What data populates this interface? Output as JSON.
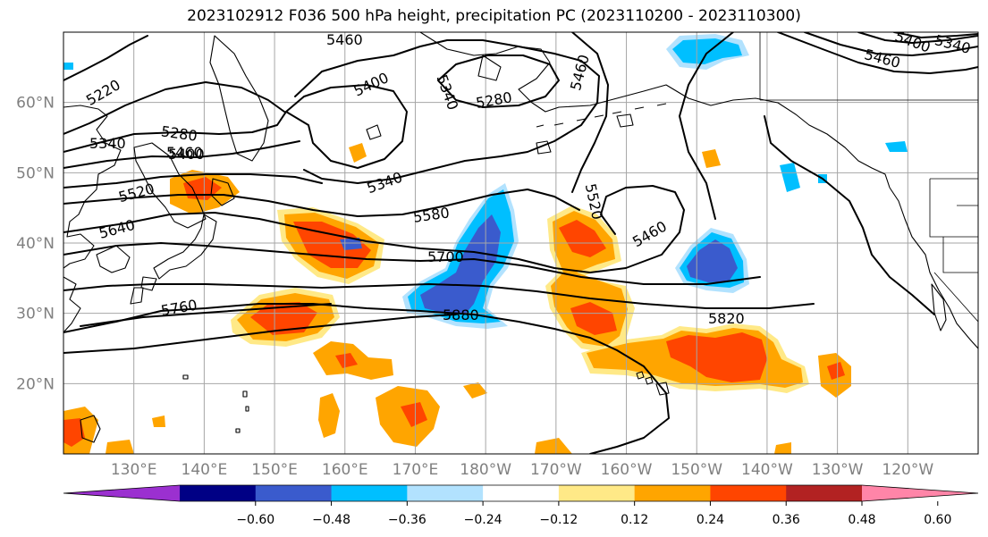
{
  "title": "2023102912 F036 500 hPa height, precipitation PC (2023110200 - 2023110300)",
  "map": {
    "lat_ticks": [
      {
        "label": "20°N",
        "lat": 20
      },
      {
        "label": "30°N",
        "lat": 30
      },
      {
        "label": "40°N",
        "lat": 40
      },
      {
        "label": "50°N",
        "lat": 50
      },
      {
        "label": "60°N",
        "lat": 60
      }
    ],
    "lon_ticks": [
      {
        "label": "130°E",
        "lon": 130
      },
      {
        "label": "140°E",
        "lon": 140
      },
      {
        "label": "150°E",
        "lon": 150
      },
      {
        "label": "160°E",
        "lon": 160
      },
      {
        "label": "170°E",
        "lon": 170
      },
      {
        "label": "180°W",
        "lon": 180
      },
      {
        "label": "170°W",
        "lon": 190
      },
      {
        "label": "160°W",
        "lon": 200
      },
      {
        "label": "150°W",
        "lon": 210
      },
      {
        "label": "140°W",
        "lon": 220
      },
      {
        "label": "130°W",
        "lon": 230
      },
      {
        "label": "120°W",
        "lon": 240
      }
    ],
    "extent": {
      "lon_min": 120,
      "lon_max": 250,
      "lat_min": 10,
      "lat_max": 70
    },
    "grid_color": "#a6a6a6",
    "contour_labels": [
      "5220",
      "5280",
      "5340",
      "5400",
      "5460",
      "5520",
      "5580",
      "5640",
      "5700",
      "5760",
      "5820",
      "5880",
      "5280",
      "5340",
      "5400",
      "5460",
      "5340",
      "5460",
      "5520",
      "5460",
      "5340",
      "5400",
      "5460"
    ]
  },
  "colorbar": {
    "colors": [
      "#9b30d0",
      "#000085",
      "#3a5bcd",
      "#00bfff",
      "#b2e2fe",
      "#ffffff",
      "#ffe987",
      "#ffa500",
      "#ff4500",
      "#b22222",
      "#ff85a8"
    ],
    "ticks": [
      "−0.60",
      "−0.48",
      "−0.36",
      "−0.24",
      "−0.12",
      "0.12",
      "0.24",
      "0.36",
      "0.48",
      "0.60"
    ]
  }
}
